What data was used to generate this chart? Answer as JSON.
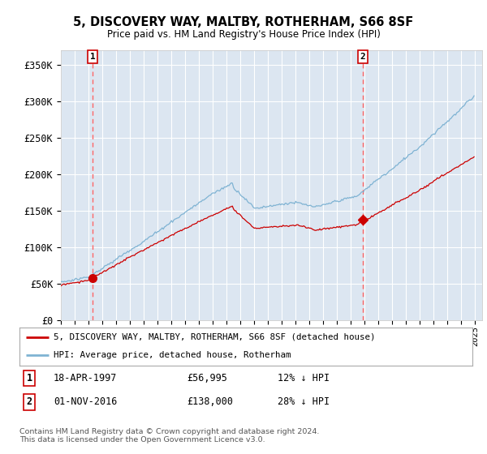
{
  "title": "5, DISCOVERY WAY, MALTBY, ROTHERHAM, S66 8SF",
  "subtitle": "Price paid vs. HM Land Registry's House Price Index (HPI)",
  "legend_line1": "5, DISCOVERY WAY, MALTBY, ROTHERHAM, S66 8SF (detached house)",
  "legend_line2": "HPI: Average price, detached house, Rotherham",
  "transaction1_date": "18-APR-1997",
  "transaction1_price": 56995,
  "transaction1_note": "12% ↓ HPI",
  "transaction2_date": "01-NOV-2016",
  "transaction2_price": 138000,
  "transaction2_note": "28% ↓ HPI",
  "footer": "Contains HM Land Registry data © Crown copyright and database right 2024.\nThis data is licensed under the Open Government Licence v3.0.",
  "fig_bg_color": "#ffffff",
  "plot_bg_color": "#dce6f1",
  "grid_color": "#ffffff",
  "hpi_color": "#7fb3d3",
  "price_color": "#cc0000",
  "vline_color": "#ff6666",
  "ylim": [
    0,
    370000
  ],
  "yticks": [
    0,
    50000,
    100000,
    150000,
    200000,
    250000,
    300000,
    350000
  ],
  "ytick_labels": [
    "£0",
    "£50K",
    "£100K",
    "£150K",
    "£200K",
    "£250K",
    "£300K",
    "£350K"
  ],
  "xlim_start": 1995.0,
  "xlim_end": 2025.5
}
